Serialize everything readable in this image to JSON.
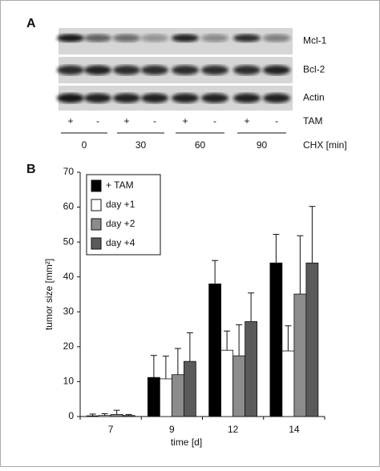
{
  "panel_labels": [
    "A",
    "B"
  ],
  "panel_a": {
    "rows": [
      "Mcl-1",
      "Bcl-2",
      "Actin"
    ],
    "tam_label": "TAM",
    "tam_signs": [
      "+",
      "-",
      "+",
      "-",
      "+",
      "-",
      "+",
      "-"
    ],
    "chx_label": "CHX [min]",
    "chx_times": [
      "0",
      "30",
      "60",
      "90"
    ]
  },
  "chart_data": {
    "type": "bar",
    "xlabel": "time [d]",
    "ylabel": "tumor size [mm²]",
    "categories": [
      "7",
      "9",
      "12",
      "14"
    ],
    "series": [
      {
        "name": "+ TAM",
        "color": "#000000",
        "values": [
          0.2,
          11.2,
          38,
          44
        ],
        "errors": [
          0.5,
          6.3,
          6.7,
          8.2
        ]
      },
      {
        "name": "day +1",
        "color": "#ffffff",
        "values": [
          0.3,
          10.8,
          19,
          18.8
        ],
        "errors": [
          0.5,
          6.5,
          5.5,
          7.2
        ]
      },
      {
        "name": "day +2",
        "color": "#8c8c8c",
        "values": [
          0.6,
          12,
          17.4,
          35.1
        ],
        "errors": [
          1.2,
          7.5,
          8.9,
          16.7
        ]
      },
      {
        "name": "day +4",
        "color": "#5a5a5a",
        "values": [
          0.3,
          15.8,
          27.2,
          44
        ],
        "errors": [
          0.3,
          8.2,
          8.2,
          16.2
        ]
      }
    ],
    "ylim": [
      0,
      70
    ],
    "yticks": [
      0,
      10,
      20,
      30,
      40,
      50,
      60,
      70
    ],
    "legend": "upper left"
  }
}
